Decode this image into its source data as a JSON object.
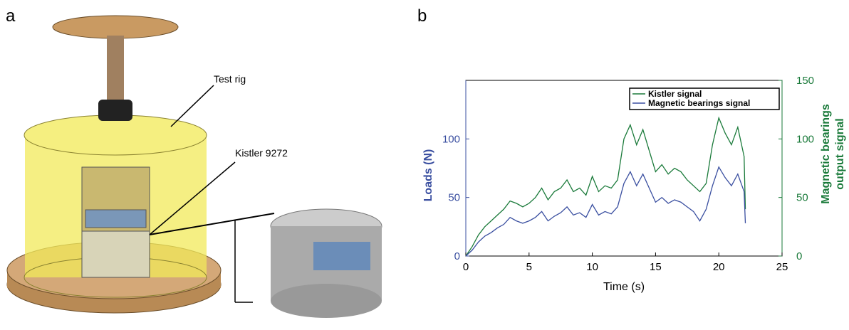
{
  "panels": [
    "a",
    "b"
  ],
  "illustration": {
    "annotations": [
      "Test rig",
      "Kistler 9272"
    ]
  },
  "chart_data": {
    "type": "line",
    "xlabel": "Time (s)",
    "ylabel": "Loads (N)",
    "y2label": [
      "Magnetic bearings",
      "output signal"
    ],
    "xlim": [
      0,
      25
    ],
    "xticks": [
      0,
      5,
      10,
      15,
      20,
      25
    ],
    "ylim": [
      0,
      150
    ],
    "yticks": [
      0,
      50,
      100
    ],
    "ycolor": "#3a4fa0",
    "y2lim": [
      0,
      150
    ],
    "y2ticks": [
      0,
      50,
      100,
      150
    ],
    "y2color": "#1a7a3a",
    "legend": "upper right",
    "x": [
      0,
      0.5,
      1,
      1.5,
      2,
      2.5,
      3,
      3.5,
      4,
      4.5,
      5,
      5.5,
      6,
      6.5,
      7,
      7.5,
      8,
      8.5,
      9,
      9.5,
      10,
      10.5,
      11,
      11.5,
      12,
      12.5,
      13,
      13.5,
      14,
      14.5,
      15,
      15.5,
      16,
      16.5,
      17,
      17.5,
      18,
      18.5,
      19,
      19.5,
      20,
      20.5,
      21,
      21.5,
      22,
      22.1
    ],
    "series": [
      {
        "name": "Kistler signal",
        "color": "#1a7a3a",
        "axis": "y2",
        "values": [
          0,
          8,
          18,
          25,
          30,
          35,
          40,
          47,
          45,
          42,
          45,
          50,
          58,
          48,
          55,
          58,
          65,
          55,
          58,
          52,
          68,
          55,
          60,
          58,
          65,
          100,
          112,
          95,
          108,
          90,
          72,
          78,
          70,
          75,
          72,
          65,
          60,
          55,
          62,
          95,
          118,
          105,
          95,
          110,
          85,
          40
        ]
      },
      {
        "name": "Magnetic bearings signal",
        "color": "#3a4fa0",
        "values": [
          0,
          5,
          12,
          17,
          20,
          24,
          27,
          33,
          30,
          28,
          30,
          33,
          38,
          30,
          34,
          37,
          42,
          35,
          37,
          33,
          44,
          35,
          38,
          36,
          42,
          62,
          72,
          60,
          70,
          58,
          46,
          50,
          45,
          48,
          46,
          42,
          38,
          30,
          40,
          60,
          76,
          67,
          60,
          70,
          55,
          28
        ]
      }
    ]
  }
}
